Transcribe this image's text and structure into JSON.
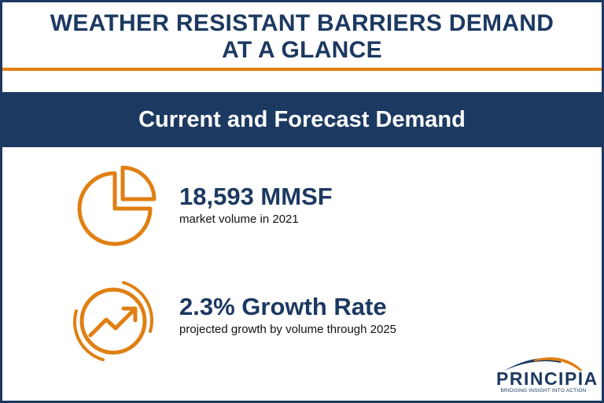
{
  "title": {
    "line1": "WEATHER RESISTANT BARRIERS DEMAND",
    "line2": "AT A GLANCE"
  },
  "banner": {
    "label": "Current and Forecast Demand"
  },
  "stats": [
    {
      "value": "18,593 MMSF",
      "caption": "market volume in 2021",
      "icon": "pie-chart-icon"
    },
    {
      "value": "2.3% Growth Rate",
      "caption": "projected growth by volume through 2025",
      "icon": "growth-trend-icon"
    }
  ],
  "logo": {
    "wordmark": "PRINCIPIA",
    "tagline": "BRIDGING INSIGHT INTO ACTION"
  },
  "colors": {
    "navy": "#1c3961",
    "orange": "#e07f12",
    "background": "#ffffff"
  }
}
